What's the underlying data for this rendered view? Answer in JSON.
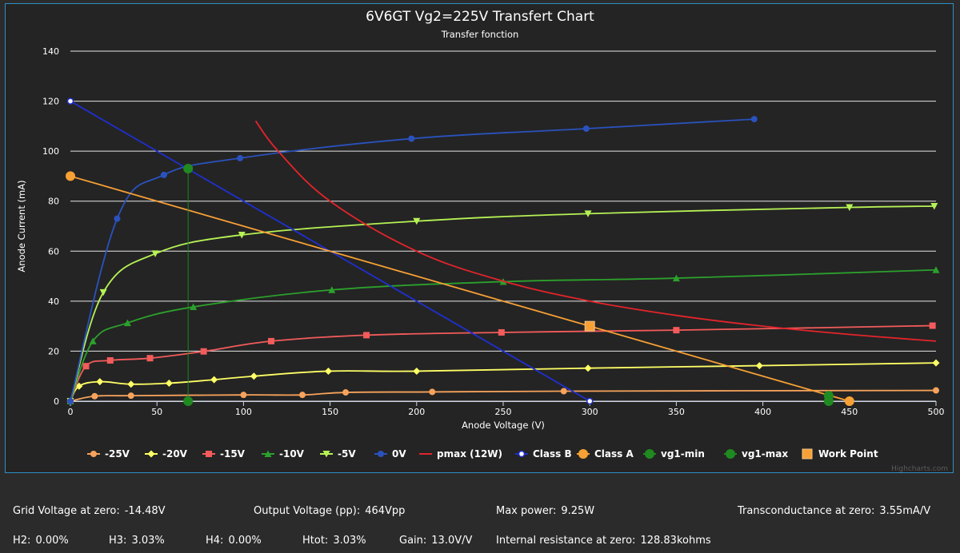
{
  "chart_data": {
    "type": "line",
    "title": "6V6GT Vg2=225V Transfert Chart",
    "subtitle": "Transfer fonction",
    "xlabel": "Anode Voltage (V)",
    "ylabel": "Anode Current (mA)",
    "xlim": [
      0,
      500
    ],
    "ylim": [
      0,
      140
    ],
    "xticks": [
      0,
      50,
      100,
      150,
      200,
      250,
      300,
      350,
      400,
      450,
      500
    ],
    "yticks": [
      0,
      20,
      40,
      60,
      80,
      100,
      120,
      140
    ],
    "grid": "horizontal",
    "legend_position": "bottom",
    "credit": "Highcharts.com",
    "series": [
      {
        "name": "-25V",
        "color": "#f7a35c",
        "marker": "circle",
        "line": "curve",
        "points": [
          [
            0,
            0
          ],
          [
            14,
            2
          ],
          [
            35,
            2.2
          ],
          [
            100,
            2.5
          ],
          [
            134,
            2.5
          ],
          [
            159,
            3.5
          ],
          [
            209,
            3.7
          ],
          [
            285,
            4
          ],
          [
            500,
            4.3
          ]
        ]
      },
      {
        "name": "-20V",
        "color": "#ffff66",
        "marker": "diamond",
        "line": "curve",
        "points": [
          [
            0,
            0
          ],
          [
            5,
            6
          ],
          [
            17,
            7.8
          ],
          [
            35,
            6.8
          ],
          [
            57,
            7.2
          ],
          [
            83,
            8.6
          ],
          [
            106,
            10
          ],
          [
            149,
            12
          ],
          [
            200,
            12
          ],
          [
            299,
            13.2
          ],
          [
            398,
            14.2
          ],
          [
            500,
            15.3
          ]
        ]
      },
      {
        "name": "-15V",
        "color": "#f45b5b",
        "marker": "square",
        "line": "curve",
        "points": [
          [
            0,
            0
          ],
          [
            9,
            14
          ],
          [
            23,
            16.3
          ],
          [
            46,
            17.2
          ],
          [
            77,
            19.9
          ],
          [
            116,
            24
          ],
          [
            171,
            26.4
          ],
          [
            249,
            27.5
          ],
          [
            350,
            28.4
          ],
          [
            498,
            30.2
          ]
        ]
      },
      {
        "name": "-10V",
        "color": "#2ca02c",
        "marker": "triangle",
        "line": "curve",
        "points": [
          [
            0,
            0
          ],
          [
            13,
            24
          ],
          [
            33,
            31.3
          ],
          [
            71,
            37.7
          ],
          [
            151,
            44.5
          ],
          [
            250,
            47.8
          ],
          [
            350,
            49.2
          ],
          [
            500,
            52.5
          ]
        ]
      },
      {
        "name": "-5V",
        "color": "#b6f255",
        "marker": "triangle-down",
        "line": "curve",
        "points": [
          [
            0,
            0
          ],
          [
            19,
            43.5
          ],
          [
            49,
            59
          ],
          [
            99,
            66.5
          ],
          [
            200,
            72
          ],
          [
            299,
            75
          ],
          [
            450,
            77.5
          ],
          [
            499,
            78
          ]
        ]
      },
      {
        "name": "0V",
        "color": "#2a52be",
        "marker": "circle",
        "line": "curve",
        "points": [
          [
            0,
            0
          ],
          [
            27,
            73
          ],
          [
            54,
            90.5
          ],
          [
            98,
            97.2
          ],
          [
            197,
            105
          ],
          [
            298,
            109
          ],
          [
            395,
            112.8
          ]
        ]
      },
      {
        "name": "pmax (12W)",
        "color": "#e3242b",
        "marker": "none",
        "line": "curve",
        "points": [
          [
            107,
            112.1
          ],
          [
            120,
            100
          ],
          [
            150,
            80
          ],
          [
            200,
            60
          ],
          [
            250,
            48
          ],
          [
            300,
            40
          ],
          [
            350,
            34.3
          ],
          [
            400,
            30
          ],
          [
            450,
            26.7
          ],
          [
            500,
            24
          ]
        ]
      },
      {
        "name": "Class B",
        "color": "#1f2fd1",
        "marker": "hollow-circle",
        "line": "straight",
        "points": [
          [
            0,
            120
          ],
          [
            300,
            0
          ]
        ]
      },
      {
        "name": "Class A",
        "color": "#f7a035",
        "marker": "big-circle",
        "line": "straight",
        "points": [
          [
            0,
            90
          ],
          [
            450,
            0
          ]
        ]
      },
      {
        "name": "vg1-min",
        "color": "#1f8a1f",
        "marker": "big-circle",
        "line": "straight",
        "points": [
          [
            438,
            2.2
          ],
          [
            438,
            0
          ]
        ]
      },
      {
        "name": "vg1-max",
        "color": "#1f8a1f",
        "marker": "big-circle",
        "line": "straight",
        "points": [
          [
            68,
            93
          ],
          [
            68,
            0
          ]
        ]
      },
      {
        "name": "Work Point",
        "color": "#f7a035",
        "marker": "big-square",
        "line": "none",
        "points": [
          [
            300,
            30
          ]
        ]
      }
    ]
  },
  "stats": {
    "row1": [
      {
        "label": "Grid Voltage at zero:",
        "value": "-14.48V"
      },
      {
        "label": "Output Voltage (pp):",
        "value": "464Vpp"
      },
      {
        "label": "Max power:",
        "value": "9.25W"
      },
      {
        "label": "Transconductance at zero:",
        "value": "3.55mA/V"
      }
    ],
    "row2": [
      {
        "label": "H2:",
        "value": "0.00%"
      },
      {
        "label": "H3:",
        "value": "3.03%"
      },
      {
        "label": "H4:",
        "value": "0.00%"
      },
      {
        "label": "Htot:",
        "value": "3.03%"
      },
      {
        "label": "Gain:",
        "value": "13.0V/V"
      },
      {
        "label": "Internal resistance at zero:",
        "value": "128.83kohms"
      }
    ]
  }
}
